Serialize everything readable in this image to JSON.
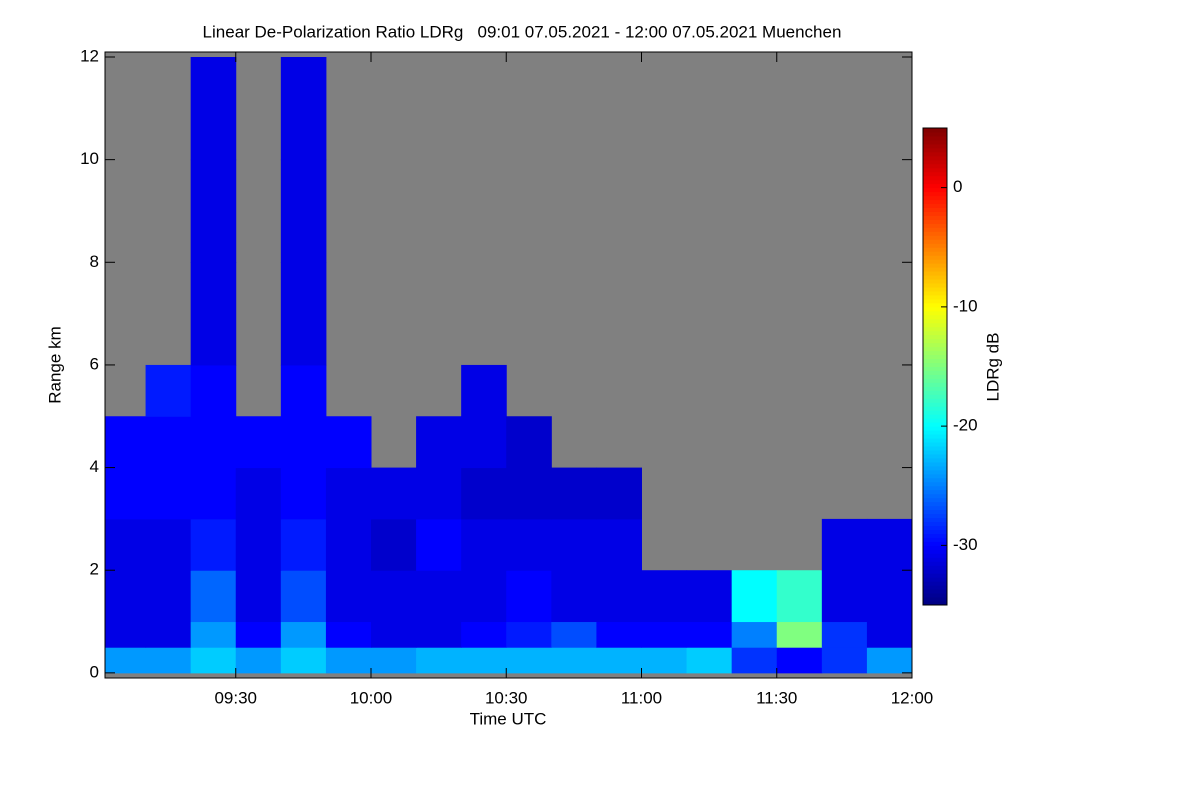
{
  "chart_data": {
    "type": "heatmap",
    "title": "Linear De-Polarization Ratio LDRg   09:01 07.05.2021 - 12:00 07.05.2021 Muenchen",
    "x_label": "Time UTC",
    "y_label": "Range km",
    "colorbar_label": "LDRg dB",
    "colormap": "jet",
    "x_bins": [
      541,
      550,
      560,
      570,
      580,
      590,
      600,
      610,
      620,
      630,
      640,
      650,
      660,
      670,
      680,
      690,
      700,
      710,
      720
    ],
    "y_bins": [
      0,
      0.5,
      1,
      2,
      3,
      4,
      5,
      6,
      8,
      10,
      12
    ],
    "z": [
      [
        -24,
        -24,
        -22,
        -24,
        -22,
        -24,
        -24,
        -23,
        -23,
        -23,
        -23,
        -23,
        -23,
        -22,
        -28,
        -30,
        -28,
        -24
      ],
      [
        -31,
        -31,
        -24,
        -30,
        -24,
        -30,
        -31,
        -31,
        -30,
        -29,
        -27,
        -30,
        -30,
        -30,
        -25,
        -15,
        -28,
        -31
      ],
      [
        -31,
        -31,
        -26,
        -31,
        -27,
        -31,
        -31,
        -31,
        -31,
        -30,
        -31,
        -31,
        -31,
        -31,
        -20,
        -18,
        -31,
        -31
      ],
      [
        -31,
        -31,
        -29,
        -31,
        -29,
        -31,
        -32,
        -30,
        -31,
        -31,
        -31,
        -31,
        null,
        null,
        null,
        null,
        -31,
        -31
      ],
      [
        -30,
        -30,
        -30,
        -31,
        -30,
        -31,
        -31,
        -31,
        -32,
        -32,
        -32,
        -32,
        null,
        null,
        null,
        null,
        null,
        null
      ],
      [
        -30,
        -30,
        -30,
        -30,
        -30,
        -30,
        null,
        -31,
        -31,
        -32,
        null,
        null,
        null,
        null,
        null,
        null,
        null,
        null
      ],
      [
        null,
        -29,
        -30,
        null,
        -30,
        null,
        null,
        null,
        -31,
        null,
        null,
        null,
        null,
        null,
        null,
        null,
        null,
        null
      ],
      [
        null,
        null,
        -31,
        null,
        -31,
        null,
        null,
        null,
        null,
        null,
        null,
        null,
        null,
        null,
        null,
        null,
        null,
        null
      ],
      [
        null,
        null,
        -31,
        null,
        -31,
        null,
        null,
        null,
        null,
        null,
        null,
        null,
        null,
        null,
        null,
        null,
        null,
        null
      ],
      [
        null,
        null,
        -31,
        null,
        -31,
        null,
        null,
        null,
        null,
        null,
        null,
        null,
        null,
        null,
        null,
        null,
        null,
        null
      ]
    ],
    "xlim": [
      541,
      720
    ],
    "xticks": [
      {
        "value": 570,
        "label": "09:30"
      },
      {
        "value": 600,
        "label": "10:00"
      },
      {
        "value": 630,
        "label": "10:30"
      },
      {
        "value": 660,
        "label": "11:00"
      },
      {
        "value": 690,
        "label": "11:30"
      },
      {
        "value": 720,
        "label": "12:00"
      }
    ],
    "ylim": [
      -0.1,
      12
    ],
    "yticks": [
      0,
      2,
      4,
      6,
      8,
      10,
      12
    ],
    "zlim": [
      -35,
      5
    ],
    "zticks": [
      0,
      -10,
      -20,
      -30
    ]
  }
}
